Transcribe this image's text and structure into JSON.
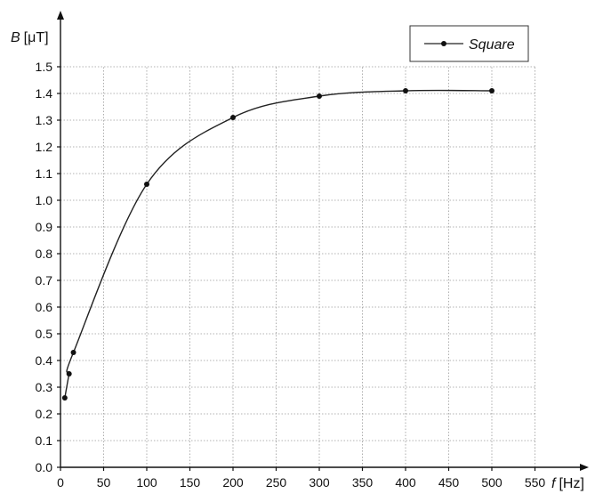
{
  "chart_data": {
    "type": "line",
    "title": "",
    "xlabel": {
      "var": "f",
      "unit": "[Hz]"
    },
    "ylabel": {
      "var": "B",
      "unit": "[μT]"
    },
    "xlim": [
      0,
      555
    ],
    "ylim": [
      0,
      1.52
    ],
    "x_ticks": [
      "0",
      "50",
      "100",
      "150",
      "200",
      "250",
      "300",
      "350",
      "400",
      "450",
      "500",
      "550"
    ],
    "y_ticks": [
      "0.0",
      "0.1",
      "0.2",
      "0.3",
      "0.4",
      "0.5",
      "0.6",
      "0.7",
      "0.8",
      "0.9",
      "1.0",
      "1.1",
      "1.2",
      "1.3",
      "1.4",
      "1.5"
    ],
    "grid": true,
    "legend_position": "top-right",
    "series": [
      {
        "name": "Square",
        "color": "#222222",
        "x": [
          5,
          10,
          15,
          100,
          200,
          300,
          400,
          500
        ],
        "y": [
          0.26,
          0.35,
          0.43,
          1.06,
          1.31,
          1.39,
          1.41,
          1.41
        ]
      }
    ]
  }
}
